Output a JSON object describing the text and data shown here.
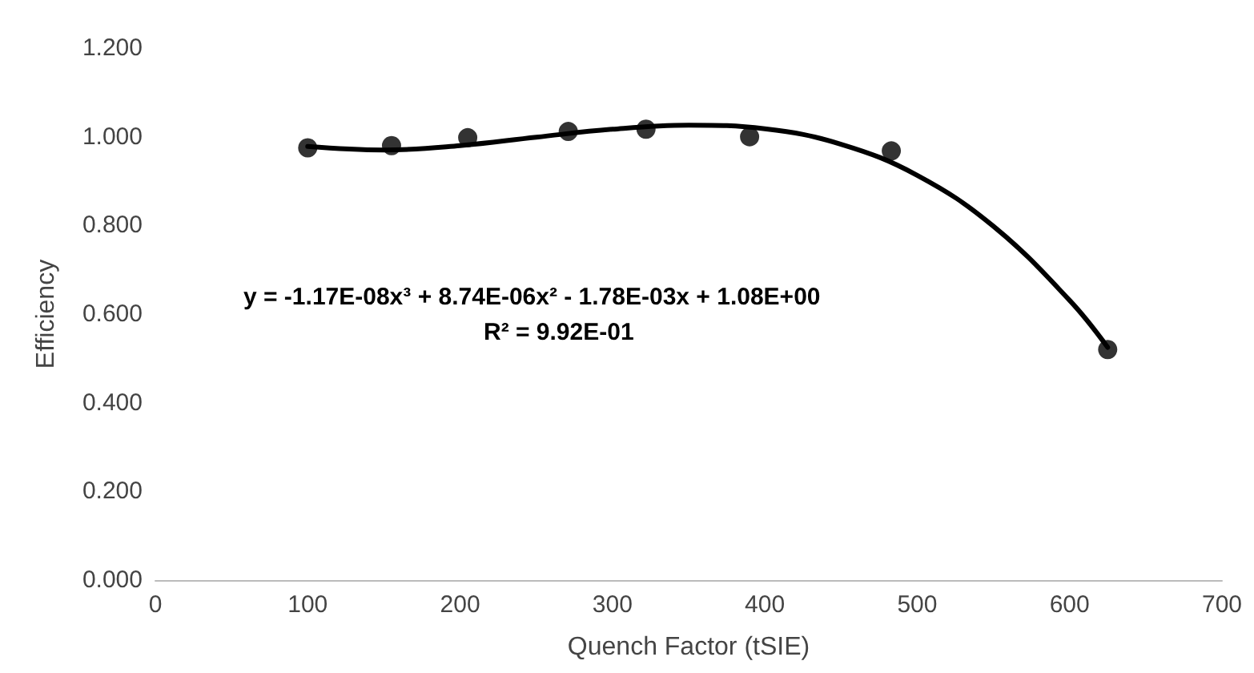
{
  "chart_data": {
    "type": "scatter",
    "xlabel": "Quench Factor (tSIE)",
    "ylabel": "Efficiency",
    "annotations": [
      "y = -1.17E-08x³ + 8.74E-06x² - 1.78E-03x + 1.08E+00",
      "R² = 9.92E-01"
    ],
    "series": [
      {
        "color": "#000000",
        "marker": "circle",
        "x": [
          100,
          155,
          205,
          271,
          322,
          390,
          483,
          625
        ],
        "values": [
          0.975,
          0.98,
          0.998,
          1.012,
          1.017,
          1.0,
          0.968,
          0.52
        ]
      },
      {
        "type": "line",
        "color": "#000000",
        "line_style": "solid",
        "marker": "none",
        "x": [
          100,
          150,
          200,
          250,
          300,
          350,
          400,
          450,
          500,
          550,
          600,
          625
        ],
        "values": [
          0.978,
          0.97,
          0.98,
          0.999,
          1.017,
          1.026,
          1.018,
          0.983,
          0.913,
          0.798,
          0.631,
          0.525
        ]
      }
    ],
    "xlim": [
      0,
      700
    ],
    "xticks": [
      0,
      100,
      200,
      300,
      400,
      500,
      600,
      700
    ],
    "ylim": [
      0,
      1.2
    ],
    "yticks": [
      {
        "value": 0,
        "label": "0.000"
      },
      {
        "value": 0.2,
        "label": "0.200"
      },
      {
        "value": 0.4,
        "label": "0.400"
      },
      {
        "value": 0.6,
        "label": "0.600"
      },
      {
        "value": 0.8,
        "label": "0.800"
      },
      {
        "value": 1.0,
        "label": "1.000"
      },
      {
        "value": 1.2,
        "label": "1.200"
      }
    ],
    "grid": false
  }
}
